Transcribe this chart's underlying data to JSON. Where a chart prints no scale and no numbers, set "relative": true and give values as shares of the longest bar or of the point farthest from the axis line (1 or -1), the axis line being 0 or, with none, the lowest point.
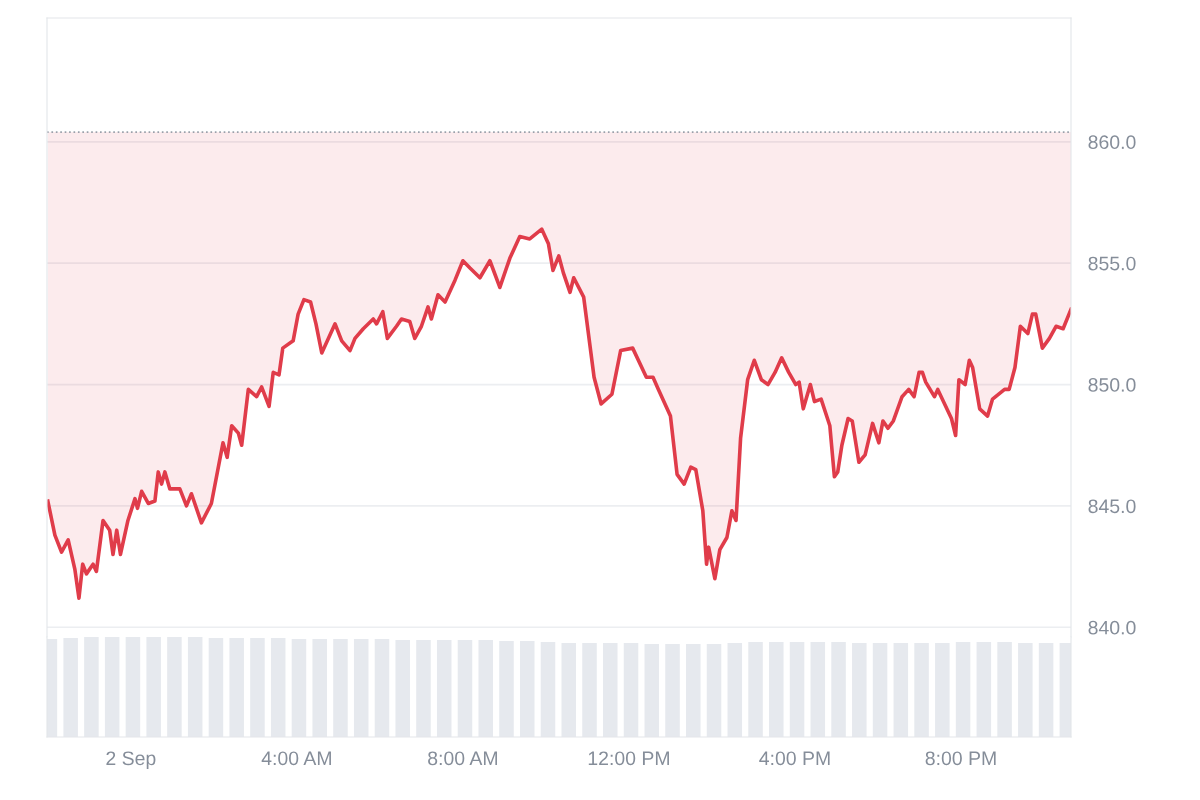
{
  "chart_data": [
    {
      "type": "line",
      "x": [
        -2.0,
        -1.83,
        -1.67,
        -1.51,
        -1.35,
        -1.25,
        -1.16,
        -1.07,
        -0.91,
        -0.83,
        -0.67,
        -0.51,
        -0.43,
        -0.34,
        -0.25,
        -0.07,
        0.1,
        0.16,
        0.26,
        0.42,
        0.58,
        0.66,
        0.74,
        0.82,
        0.94,
        1.18,
        1.34,
        1.46,
        1.7,
        1.94,
        2.22,
        2.32,
        2.43,
        2.59,
        2.67,
        2.83,
        3.03,
        3.15,
        3.33,
        3.43,
        3.57,
        3.66,
        3.91,
        4.03,
        4.17,
        4.33,
        4.46,
        4.6,
        4.92,
        5.08,
        5.28,
        5.4,
        5.6,
        5.84,
        5.92,
        6.07,
        6.18,
        6.4,
        6.52,
        6.72,
        6.84,
        7.0,
        7.16,
        7.24,
        7.4,
        7.57,
        7.81,
        8.0,
        8.17,
        8.41,
        8.65,
        8.89,
        9.13,
        9.37,
        9.61,
        9.9,
        10.06,
        10.17,
        10.31,
        10.42,
        10.58,
        10.67,
        10.91,
        11.16,
        11.33,
        11.59,
        11.8,
        12.09,
        12.42,
        12.58,
        12.71,
        13.0,
        13.16,
        13.33,
        13.49,
        13.61,
        13.78,
        13.87,
        13.92,
        14.07,
        14.19,
        14.36,
        14.48,
        14.58,
        14.69,
        14.86,
        15.02,
        15.19,
        15.35,
        15.52,
        15.68,
        15.85,
        16.02,
        16.1,
        16.2,
        16.37,
        16.47,
        16.63,
        16.84,
        16.95,
        17.03,
        17.13,
        17.28,
        17.38,
        17.54,
        17.69,
        17.87,
        18.02,
        18.12,
        18.24,
        18.37,
        18.58,
        18.74,
        18.87,
        18.99,
        19.07,
        19.15,
        19.36,
        19.44,
        19.77,
        19.87,
        19.95,
        20.1,
        20.2,
        20.28,
        20.45,
        20.64,
        20.76,
        21.05,
        21.16,
        21.3,
        21.43,
        21.61,
        21.72,
        21.8,
        21.96,
        22.13,
        22.29,
        22.46,
        22.65
      ],
      "series": [
        {
          "color": "#e03c4a",
          "upper": [
            860.4,
            860.4,
            860.4,
            860.4,
            860.4,
            860.4,
            860.4,
            860.4,
            860.4,
            860.4,
            860.4,
            860.4,
            860.4,
            860.4,
            860.4,
            860.4,
            860.4,
            860.4,
            860.4,
            860.4,
            860.4,
            860.4,
            860.4,
            860.4,
            860.4,
            860.4,
            860.4,
            860.4,
            860.4,
            860.4,
            860.4,
            860.4,
            860.4,
            860.4,
            860.4,
            860.4,
            860.4,
            860.4,
            860.4,
            860.4,
            860.4,
            860.4,
            860.4,
            860.4,
            860.4,
            860.4,
            860.4,
            860.4,
            860.4,
            860.4,
            860.4,
            860.4,
            860.4,
            860.4,
            860.4,
            860.4,
            860.4,
            860.4,
            860.4,
            860.4,
            860.4,
            860.4,
            860.4,
            860.4,
            860.4,
            860.4,
            860.4,
            860.4,
            860.4,
            860.4,
            860.4,
            860.4,
            860.4,
            860.4,
            860.4,
            860.4,
            860.4,
            860.4,
            860.4,
            860.4,
            860.4,
            860.4,
            860.4,
            860.4,
            860.4,
            860.4,
            860.4,
            860.4,
            860.4,
            860.4,
            860.4,
            860.4,
            860.4,
            860.4,
            860.4,
            860.4,
            860.4,
            860.4,
            860.4,
            860.4,
            860.4,
            860.4,
            860.4,
            860.4,
            860.4,
            860.4,
            860.4,
            860.4,
            860.4,
            860.4,
            860.4,
            860.4,
            860.4,
            860.4,
            860.4,
            860.4,
            860.4,
            860.4,
            860.4,
            860.4,
            860.4,
            860.4,
            860.4,
            860.4,
            860.4,
            860.4,
            860.4,
            860.4,
            860.4,
            860.4,
            860.4,
            860.4,
            860.4,
            860.4,
            860.4,
            860.4,
            860.4,
            860.4,
            860.4,
            860.4,
            860.4,
            860.4,
            860.4,
            860.4,
            860.4,
            860.4,
            860.4,
            860.4,
            860.4,
            860.4,
            860.4,
            860.4,
            860.4,
            860.4,
            860.4,
            860.4,
            860.4,
            860.4,
            860.4,
            860.4
          ],
          "lower": [
            845.2,
            843.8,
            843.1,
            843.6,
            842.4,
            841.2,
            842.6,
            842.2,
            842.6,
            842.3,
            844.4,
            844.0,
            843.0,
            844.0,
            843.0,
            844.4,
            845.3,
            844.9,
            845.6,
            845.1,
            845.2,
            846.4,
            845.9,
            846.4,
            845.7,
            845.7,
            845.0,
            845.5,
            844.3,
            845.1,
            847.6,
            847.0,
            848.3,
            848.0,
            847.5,
            849.8,
            849.5,
            849.9,
            849.1,
            850.5,
            850.4,
            851.5,
            851.8,
            852.9,
            853.5,
            853.4,
            852.5,
            851.3,
            852.5,
            851.8,
            851.4,
            851.9,
            852.3,
            852.7,
            852.5,
            853.0,
            851.9,
            852.4,
            852.7,
            852.6,
            851.9,
            852.4,
            853.2,
            852.7,
            853.7,
            853.4,
            854.3,
            855.1,
            854.8,
            854.4,
            855.1,
            854.0,
            855.2,
            856.1,
            856.0,
            856.4,
            855.8,
            854.7,
            855.3,
            854.6,
            853.8,
            854.4,
            853.6,
            850.3,
            849.2,
            849.6,
            851.4,
            851.5,
            850.3,
            850.3,
            849.8,
            848.7,
            846.3,
            845.9,
            846.6,
            846.5,
            844.8,
            842.6,
            843.3,
            842.0,
            843.2,
            843.7,
            844.8,
            844.4,
            847.8,
            850.2,
            851.0,
            850.2,
            850.0,
            850.5,
            851.1,
            850.5,
            850.0,
            850.1,
            849.0,
            850.0,
            849.3,
            849.4,
            848.3,
            846.2,
            846.4,
            847.5,
            848.6,
            848.5,
            846.8,
            847.1,
            848.4,
            847.6,
            848.5,
            848.2,
            848.5,
            849.5,
            849.8,
            849.5,
            850.5,
            850.5,
            850.1,
            849.5,
            849.8,
            848.6,
            847.9,
            850.2,
            850.0,
            851.0,
            850.7,
            849.0,
            848.7,
            849.4,
            849.8,
            849.8,
            850.7,
            852.4,
            852.1,
            852.9,
            852.9,
            851.5,
            851.9,
            852.4,
            852.3,
            853.1
          ],
          "values": [
            845.2,
            843.8,
            843.1,
            843.6,
            842.4,
            841.2,
            842.6,
            842.2,
            842.6,
            842.3,
            844.4,
            844.0,
            843.0,
            844.0,
            843.0,
            844.4,
            845.3,
            844.9,
            845.6,
            845.1,
            845.2,
            846.4,
            845.9,
            846.4,
            845.7,
            845.7,
            845.0,
            845.5,
            844.3,
            845.1,
            847.6,
            847.0,
            848.3,
            848.0,
            847.5,
            849.8,
            849.5,
            849.9,
            849.1,
            850.5,
            850.4,
            851.5,
            851.8,
            852.9,
            853.5,
            853.4,
            852.5,
            851.3,
            852.5,
            851.8,
            851.4,
            851.9,
            852.3,
            852.7,
            852.5,
            853.0,
            851.9,
            852.4,
            852.7,
            852.6,
            851.9,
            852.4,
            853.2,
            852.7,
            853.7,
            853.4,
            854.3,
            855.1,
            854.8,
            854.4,
            855.1,
            854.0,
            855.2,
            856.1,
            856.0,
            856.4,
            855.8,
            854.7,
            855.3,
            854.6,
            853.8,
            854.4,
            853.6,
            850.3,
            849.2,
            849.6,
            851.4,
            851.5,
            850.3,
            850.3,
            849.8,
            848.7,
            846.3,
            845.9,
            846.6,
            846.5,
            844.8,
            842.6,
            843.3,
            842.0,
            843.2,
            843.7,
            844.8,
            844.4,
            847.8,
            850.2,
            851.0,
            850.2,
            850.0,
            850.5,
            851.1,
            850.5,
            850.0,
            850.1,
            849.0,
            850.0,
            849.3,
            849.4,
            848.3,
            846.2,
            846.4,
            847.5,
            848.6,
            848.5,
            846.8,
            847.1,
            848.4,
            847.6,
            848.5,
            848.2,
            848.5,
            849.5,
            849.8,
            849.5,
            850.5,
            850.5,
            850.1,
            849.5,
            849.8,
            848.6,
            847.9,
            850.2,
            850.0,
            851.0,
            850.7,
            849.0,
            848.7,
            849.4,
            849.8,
            849.8,
            850.7,
            852.4,
            852.1,
            852.9,
            852.9,
            851.5,
            851.9,
            852.4,
            852.3,
            853.1
          ]
        }
      ],
      "xlim": [
        -2.02,
        22.65
      ],
      "ylim": [
        839.6,
        865.1
      ],
      "yticks": [
        {
          "value": 840,
          "label": "840.0"
        },
        {
          "value": 845,
          "label": "845.0"
        },
        {
          "value": 850,
          "label": "850.0"
        },
        {
          "value": 855,
          "label": "855.0"
        },
        {
          "value": 860,
          "label": "860.0"
        }
      ],
      "ref_lines": [
        {
          "axis": "y",
          "value": 860.4,
          "color": "#9aa1ab",
          "line_style": "dotted"
        }
      ],
      "grid": "y",
      "line_style": "solid",
      "tick_labels": "y"
    },
    {
      "type": "bar",
      "relative": true,
      "color": "#e6e9ee",
      "x": [
        -1.95,
        -1.45,
        -0.95,
        -0.45,
        0.05,
        0.55,
        1.05,
        1.55,
        2.05,
        2.55,
        3.05,
        3.55,
        4.05,
        4.55,
        5.05,
        5.55,
        6.05,
        6.55,
        7.05,
        7.55,
        8.05,
        8.55,
        9.05,
        9.55,
        10.05,
        10.55,
        11.05,
        11.55,
        12.05,
        12.55,
        13.05,
        13.55,
        14.05,
        14.55,
        15.05,
        15.55,
        16.05,
        16.55,
        17.05,
        17.55,
        18.05,
        18.55,
        19.05,
        19.55,
        20.05,
        20.55,
        21.05,
        21.55,
        22.05,
        22.55
      ],
      "values": [
        0.98,
        0.99,
        1,
        1,
        1,
        1,
        1,
        1,
        0.99,
        0.99,
        0.99,
        0.99,
        0.98,
        0.98,
        0.98,
        0.98,
        0.98,
        0.97,
        0.97,
        0.97,
        0.97,
        0.97,
        0.96,
        0.96,
        0.95,
        0.94,
        0.94,
        0.94,
        0.94,
        0.93,
        0.93,
        0.93,
        0.93,
        0.94,
        0.95,
        0.95,
        0.95,
        0.95,
        0.95,
        0.94,
        0.94,
        0.94,
        0.94,
        0.94,
        0.95,
        0.95,
        0.95,
        0.94,
        0.94,
        0.94
      ],
      "xlim": [
        -2.02,
        22.65
      ],
      "xticks": [
        {
          "value": 0,
          "label": "2 Sep"
        },
        {
          "value": 4,
          "label": "4:00 AM"
        },
        {
          "value": 8,
          "label": "8:00 AM"
        },
        {
          "value": 12,
          "label": "12:00 PM"
        },
        {
          "value": 16,
          "label": "4:00 PM"
        },
        {
          "value": 20,
          "label": "8:00 PM"
        }
      ],
      "tick_labels": "x"
    }
  ]
}
